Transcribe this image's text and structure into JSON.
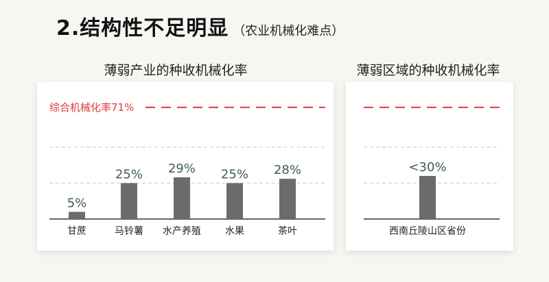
{
  "header": {
    "title": "2.结构性不足明显",
    "subtitle": "（农业机械化难点）"
  },
  "chart_data": [
    {
      "type": "bar",
      "title": "薄弱产业的种收机械化率",
      "categories": [
        "甘蔗",
        "马铃薯",
        "水产养殖",
        "水果",
        "茶叶"
      ],
      "values": [
        5,
        25,
        29,
        25,
        28
      ],
      "value_labels": [
        "5%",
        "25%",
        "29%",
        "25%",
        "28%"
      ],
      "reference_line": {
        "label": "综合机械化率71%",
        "value": 71,
        "color": "#e03a3a"
      },
      "grid": "dashed",
      "bar_color": "#6b6b6b"
    },
    {
      "type": "bar",
      "title": "薄弱区域的种收机械化率",
      "categories": [
        "西南丘陵山区省份"
      ],
      "values": [
        30
      ],
      "value_labels": [
        "<30%"
      ],
      "reference_line": {
        "value": 71,
        "color": "#e03a3a"
      },
      "grid": "dashed",
      "bar_color": "#6b6b6b"
    }
  ]
}
